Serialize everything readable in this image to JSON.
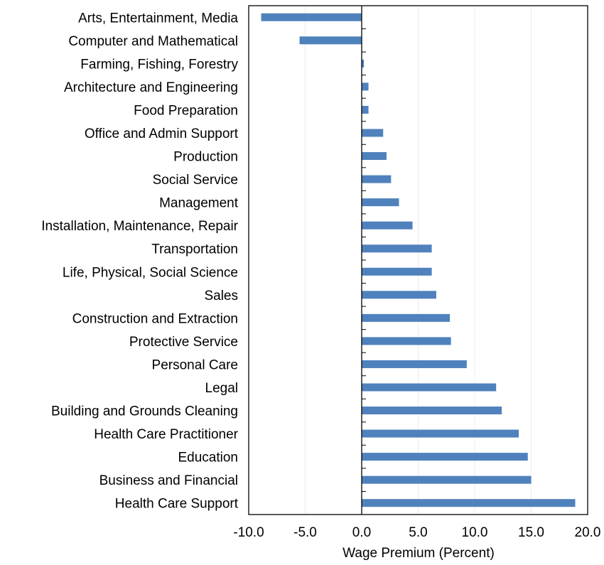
{
  "chart_data": {
    "type": "bar",
    "orientation": "horizontal",
    "title": "",
    "xlabel": "Wage Premium (Percent)",
    "ylabel": "",
    "xlim": [
      -10,
      20
    ],
    "xticks": [
      -10,
      -5,
      0,
      5,
      10,
      15,
      20
    ],
    "xtick_labels": [
      "-10.0",
      "-5.0",
      "0.0",
      "5.0",
      "10.0",
      "15.0",
      "20.0"
    ],
    "grid": "vertical gridlines",
    "legend": "none",
    "bar_color": "#4F81BD",
    "categories": [
      "Arts, Entertainment, Media",
      "Computer and Mathematical",
      "Farming, Fishing, Forestry",
      "Architecture and Engineering",
      "Food Preparation",
      "Office and Admin Support",
      "Production",
      "Social Service",
      "Management",
      "Installation, Maintenance, Repair",
      "Transportation",
      "Life, Physical, Social Science",
      "Sales",
      "Construction and Extraction",
      "Protective Service",
      "Personal Care",
      "Legal",
      "Building and Grounds Cleaning",
      "Health Care Practitioner",
      "Education",
      "Business and Financial",
      "Health Care Support"
    ],
    "values": [
      -8.9,
      -5.5,
      0.2,
      0.6,
      0.6,
      1.9,
      2.2,
      2.6,
      3.3,
      4.5,
      6.2,
      6.2,
      6.6,
      7.8,
      7.9,
      9.3,
      11.9,
      12.4,
      13.9,
      14.7,
      15.0,
      18.9
    ]
  }
}
